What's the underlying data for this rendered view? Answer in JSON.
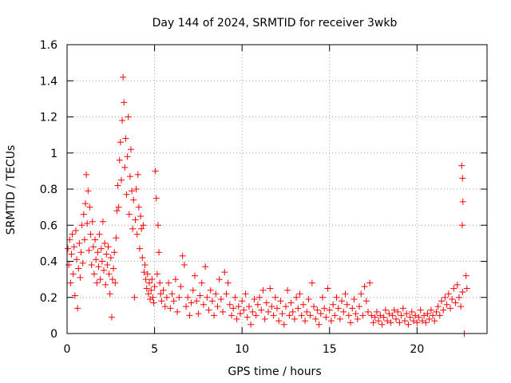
{
  "chart_data": {
    "type": "scatter",
    "title": "Day 144 of 2024, SRMTID for receiver 3wkb",
    "xlabel": "GPS time / hours",
    "ylabel": "SRMTID / TECUs",
    "xlim": [
      0,
      24
    ],
    "ylim": [
      0,
      1.6
    ],
    "xticks": [
      0,
      5,
      10,
      15,
      20
    ],
    "yticks": [
      0,
      0.2,
      0.4,
      0.6,
      0.8,
      1,
      1.2,
      1.4,
      1.6
    ],
    "ytick_labels": [
      "0",
      "0.2",
      "0.4",
      "0.6",
      "0.8",
      "1",
      "1.2",
      "1.4",
      "1.6"
    ],
    "grid": true,
    "marker": "+",
    "marker_color": "#ff0000",
    "series": [
      {
        "name": "SRMTID",
        "points": [
          [
            0.05,
            0.47
          ],
          [
            0.1,
            0.38
          ],
          [
            0.15,
            0.52
          ],
          [
            0.2,
            0.28
          ],
          [
            0.25,
            0.44
          ],
          [
            0.3,
            0.55
          ],
          [
            0.35,
            0.33
          ],
          [
            0.4,
            0.48
          ],
          [
            0.45,
            0.21
          ],
          [
            0.5,
            0.57
          ],
          [
            0.55,
            0.41
          ],
          [
            0.6,
            0.14
          ],
          [
            0.65,
            0.36
          ],
          [
            0.7,
            0.5
          ],
          [
            0.75,
            0.31
          ],
          [
            0.8,
            0.45
          ],
          [
            0.85,
            0.6
          ],
          [
            0.9,
            0.39
          ],
          [
            0.95,
            0.66
          ],
          [
            1.0,
            0.52
          ],
          [
            1.05,
            0.72
          ],
          [
            1.1,
            0.88
          ],
          [
            1.15,
            0.61
          ],
          [
            1.2,
            0.79
          ],
          [
            1.25,
            0.46
          ],
          [
            1.3,
            0.7
          ],
          [
            1.35,
            0.55
          ],
          [
            1.4,
            0.38
          ],
          [
            1.45,
            0.62
          ],
          [
            1.5,
            0.48
          ],
          [
            1.55,
            0.33
          ],
          [
            1.6,
            0.52
          ],
          [
            1.65,
            0.41
          ],
          [
            1.7,
            0.28
          ],
          [
            1.75,
            0.45
          ],
          [
            1.8,
            0.37
          ],
          [
            1.85,
            0.55
          ],
          [
            1.9,
            0.3
          ],
          [
            1.95,
            0.47
          ],
          [
            2.0,
            0.4
          ],
          [
            2.05,
            0.62
          ],
          [
            2.1,
            0.35
          ],
          [
            2.15,
            0.5
          ],
          [
            2.2,
            0.27
          ],
          [
            2.25,
            0.44
          ],
          [
            2.3,
            0.38
          ],
          [
            2.35,
            0.48
          ],
          [
            2.4,
            0.33
          ],
          [
            2.45,
            0.22
          ],
          [
            2.5,
            0.42
          ],
          [
            2.55,
            0.09
          ],
          [
            2.6,
            0.3
          ],
          [
            2.65,
            0.36
          ],
          [
            2.7,
            0.45
          ],
          [
            2.75,
            0.28
          ],
          [
            2.8,
            0.53
          ],
          [
            2.85,
            0.68
          ],
          [
            2.9,
            0.82
          ],
          [
            2.95,
            0.7
          ],
          [
            3.0,
            0.96
          ],
          [
            3.05,
            1.06
          ],
          [
            3.1,
            0.85
          ],
          [
            3.15,
            1.18
          ],
          [
            3.2,
            1.42
          ],
          [
            3.25,
            1.28
          ],
          [
            3.3,
            0.92
          ],
          [
            3.35,
            1.08
          ],
          [
            3.4,
            0.77
          ],
          [
            3.45,
            0.98
          ],
          [
            3.5,
            1.2
          ],
          [
            3.55,
            0.66
          ],
          [
            3.6,
            0.87
          ],
          [
            3.65,
            1.02
          ],
          [
            3.7,
            0.79
          ],
          [
            3.75,
            0.58
          ],
          [
            3.8,
            0.74
          ],
          [
            3.85,
            0.2
          ],
          [
            3.9,
            0.63
          ],
          [
            3.95,
            0.8
          ],
          [
            4.0,
            0.55
          ],
          [
            4.05,
            0.88
          ],
          [
            4.1,
            0.7
          ],
          [
            4.15,
            0.47
          ],
          [
            4.2,
            0.65
          ],
          [
            4.25,
            0.58
          ],
          [
            4.3,
            0.42
          ],
          [
            4.35,
            0.6
          ],
          [
            4.4,
            0.34
          ],
          [
            4.45,
            0.38
          ],
          [
            4.5,
            0.3
          ],
          [
            4.55,
            0.25
          ],
          [
            4.6,
            0.33
          ],
          [
            4.65,
            0.22
          ],
          [
            4.7,
            0.28
          ],
          [
            4.75,
            0.19
          ],
          [
            4.8,
            0.24
          ],
          [
            4.85,
            0.3
          ],
          [
            4.9,
            0.2
          ],
          [
            4.95,
            0.17
          ],
          [
            5.0,
            0.26
          ],
          [
            5.05,
            0.9
          ],
          [
            5.1,
            0.75
          ],
          [
            5.15,
            0.33
          ],
          [
            5.2,
            0.6
          ],
          [
            5.25,
            0.45
          ],
          [
            5.3,
            0.28
          ],
          [
            5.35,
            0.22
          ],
          [
            5.4,
            0.18
          ],
          [
            5.5,
            0.24
          ],
          [
            5.6,
            0.15
          ],
          [
            5.7,
            0.2
          ],
          [
            5.8,
            0.28
          ],
          [
            5.9,
            0.14
          ],
          [
            6.0,
            0.22
          ],
          [
            6.1,
            0.18
          ],
          [
            6.2,
            0.3
          ],
          [
            6.3,
            0.12
          ],
          [
            6.4,
            0.2
          ],
          [
            6.5,
            0.26
          ],
          [
            6.6,
            0.43
          ],
          [
            6.7,
            0.38
          ],
          [
            6.8,
            0.15
          ],
          [
            6.9,
            0.2
          ],
          [
            7.0,
            0.1
          ],
          [
            7.1,
            0.17
          ],
          [
            7.2,
            0.24
          ],
          [
            7.3,
            0.32
          ],
          [
            7.4,
            0.18
          ],
          [
            7.5,
            0.11
          ],
          [
            7.6,
            0.21
          ],
          [
            7.7,
            0.28
          ],
          [
            7.8,
            0.16
          ],
          [
            7.9,
            0.37
          ],
          [
            8.0,
            0.2
          ],
          [
            8.1,
            0.13
          ],
          [
            8.2,
            0.24
          ],
          [
            8.3,
            0.18
          ],
          [
            8.4,
            0.1
          ],
          [
            8.5,
            0.22
          ],
          [
            8.6,
            0.15
          ],
          [
            8.7,
            0.3
          ],
          [
            8.8,
            0.19
          ],
          [
            8.9,
            0.12
          ],
          [
            9.0,
            0.34
          ],
          [
            9.1,
            0.22
          ],
          [
            9.2,
            0.28
          ],
          [
            9.3,
            0.16
          ],
          [
            9.4,
            0.1
          ],
          [
            9.5,
            0.14
          ],
          [
            9.6,
            0.2
          ],
          [
            9.7,
            0.08
          ],
          [
            9.8,
            0.15
          ],
          [
            9.9,
            0.11
          ],
          [
            10.0,
            0.18
          ],
          [
            10.1,
            0.13
          ],
          [
            10.2,
            0.22
          ],
          [
            10.3,
            0.09
          ],
          [
            10.4,
            0.15
          ],
          [
            10.5,
            0.05
          ],
          [
            10.6,
            0.12
          ],
          [
            10.7,
            0.19
          ],
          [
            10.8,
            0.1
          ],
          [
            10.9,
            0.16
          ],
          [
            11.0,
            0.2
          ],
          [
            11.1,
            0.13
          ],
          [
            11.2,
            0.24
          ],
          [
            11.3,
            0.08
          ],
          [
            11.4,
            0.17
          ],
          [
            11.5,
            0.12
          ],
          [
            11.6,
            0.25
          ],
          [
            11.7,
            0.15
          ],
          [
            11.8,
            0.1
          ],
          [
            11.9,
            0.2
          ],
          [
            12.0,
            0.14
          ],
          [
            12.1,
            0.07
          ],
          [
            12.2,
            0.18
          ],
          [
            12.3,
            0.11
          ],
          [
            12.4,
            0.05
          ],
          [
            12.5,
            0.15
          ],
          [
            12.6,
            0.24
          ],
          [
            12.7,
            0.1
          ],
          [
            12.8,
            0.17
          ],
          [
            12.9,
            0.12
          ],
          [
            13.0,
            0.08
          ],
          [
            13.1,
            0.2
          ],
          [
            13.2,
            0.14
          ],
          [
            13.3,
            0.22
          ],
          [
            13.4,
            0.1
          ],
          [
            13.5,
            0.16
          ],
          [
            13.6,
            0.07
          ],
          [
            13.7,
            0.12
          ],
          [
            13.8,
            0.19
          ],
          [
            13.9,
            0.1
          ],
          [
            14.0,
            0.28
          ],
          [
            14.1,
            0.15
          ],
          [
            14.2,
            0.08
          ],
          [
            14.3,
            0.13
          ],
          [
            14.4,
            0.05
          ],
          [
            14.5,
            0.11
          ],
          [
            14.6,
            0.2
          ],
          [
            14.7,
            0.14
          ],
          [
            14.8,
            0.09
          ],
          [
            14.9,
            0.25
          ],
          [
            15.0,
            0.13
          ],
          [
            15.1,
            0.07
          ],
          [
            15.2,
            0.16
          ],
          [
            15.3,
            0.1
          ],
          [
            15.4,
            0.2
          ],
          [
            15.5,
            0.14
          ],
          [
            15.6,
            0.08
          ],
          [
            15.7,
            0.18
          ],
          [
            15.8,
            0.12
          ],
          [
            15.9,
            0.22
          ],
          [
            16.0,
            0.16
          ],
          [
            16.1,
            0.1
          ],
          [
            16.2,
            0.06
          ],
          [
            16.3,
            0.14
          ],
          [
            16.4,
            0.19
          ],
          [
            16.5,
            0.11
          ],
          [
            16.6,
            0.08
          ],
          [
            16.7,
            0.15
          ],
          [
            16.8,
            0.22
          ],
          [
            16.9,
            0.1
          ],
          [
            17.0,
            0.26
          ],
          [
            17.1,
            0.18
          ],
          [
            17.2,
            0.12
          ],
          [
            17.3,
            0.28
          ],
          [
            17.4,
            0.1
          ],
          [
            17.5,
            0.06
          ],
          [
            17.6,
            0.09
          ],
          [
            17.7,
            0.12
          ],
          [
            17.8,
            0.07
          ],
          [
            17.9,
            0.1
          ],
          [
            18.0,
            0.05
          ],
          [
            18.1,
            0.09
          ],
          [
            18.2,
            0.13
          ],
          [
            18.3,
            0.07
          ],
          [
            18.4,
            0.11
          ],
          [
            18.5,
            0.06
          ],
          [
            18.6,
            0.1
          ],
          [
            18.7,
            0.13
          ],
          [
            18.8,
            0.08
          ],
          [
            18.9,
            0.12
          ],
          [
            19.0,
            0.06
          ],
          [
            19.1,
            0.1
          ],
          [
            19.2,
            0.14
          ],
          [
            19.3,
            0.07
          ],
          [
            19.4,
            0.11
          ],
          [
            19.5,
            0.05
          ],
          [
            19.6,
            0.09
          ],
          [
            19.7,
            0.12
          ],
          [
            19.8,
            0.07
          ],
          [
            19.9,
            0.1
          ],
          [
            20.0,
            0.06
          ],
          [
            20.1,
            0.09
          ],
          [
            20.2,
            0.13
          ],
          [
            20.3,
            0.07
          ],
          [
            20.4,
            0.1
          ],
          [
            20.5,
            0.06
          ],
          [
            20.6,
            0.11
          ],
          [
            20.7,
            0.08
          ],
          [
            20.8,
            0.13
          ],
          [
            20.9,
            0.1
          ],
          [
            21.0,
            0.07
          ],
          [
            21.1,
            0.12
          ],
          [
            21.2,
            0.15
          ],
          [
            21.3,
            0.1
          ],
          [
            21.4,
            0.18
          ],
          [
            21.5,
            0.13
          ],
          [
            21.6,
            0.2
          ],
          [
            21.7,
            0.16
          ],
          [
            21.8,
            0.22
          ],
          [
            21.9,
            0.14
          ],
          [
            22.0,
            0.19
          ],
          [
            22.1,
            0.25
          ],
          [
            22.2,
            0.17
          ],
          [
            22.3,
            0.27
          ],
          [
            22.4,
            0.2
          ],
          [
            22.5,
            0.15
          ],
          [
            22.6,
            0.23
          ],
          [
            22.55,
            0.93
          ],
          [
            22.6,
            0.86
          ],
          [
            22.62,
            0.73
          ],
          [
            22.58,
            0.6
          ],
          [
            22.7,
            0.0
          ],
          [
            22.8,
            0.32
          ],
          [
            22.85,
            0.25
          ]
        ]
      }
    ]
  }
}
